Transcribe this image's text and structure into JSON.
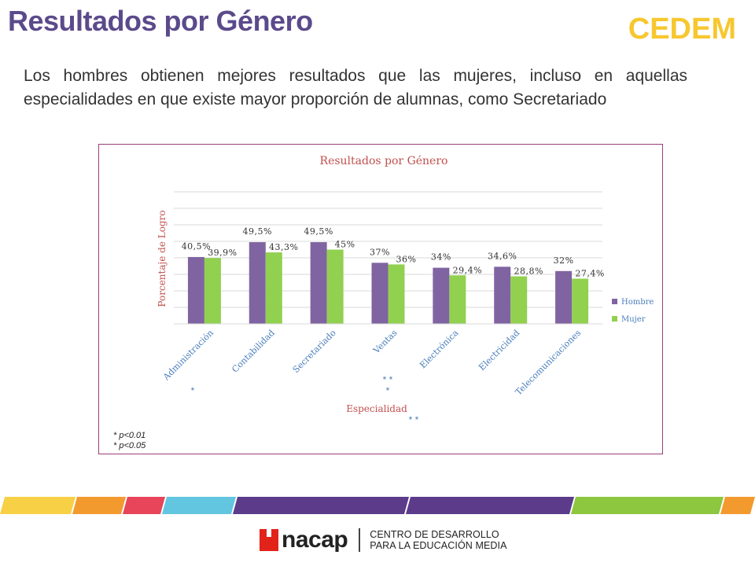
{
  "header": {
    "title": "Resultados por Género",
    "brand": "CEDEM"
  },
  "lead_text": "Los hombres obtienen mejores resultados que las mujeres, incluso en aquellas especialidades en que existe mayor proporción de alumnas, como Secretariado",
  "chart_data": {
    "type": "bar",
    "title": "Resultados por Género",
    "xlabel": "Especialidad",
    "ylabel": "Porcentaje de Logro",
    "ylim": [
      0,
      80
    ],
    "grid": true,
    "legend": "right",
    "categories": [
      "Administración",
      "Contabilidad",
      "Secretariado",
      "Ventas",
      "Electrónica",
      "Electricidad",
      "Telecomunicaciones"
    ],
    "series": [
      {
        "name": "Hombre",
        "color": "#8064a2",
        "values": [
          40.5,
          49.5,
          49.5,
          37,
          34,
          34.6,
          32
        ],
        "labels": [
          "40,5%",
          "49,5%",
          "49,5%",
          "37%",
          "34%",
          "34,6%",
          "32%"
        ]
      },
      {
        "name": "Mujer",
        "color": "#92d050",
        "values": [
          39.9,
          43.3,
          45,
          36,
          29.4,
          28.8,
          27.4
        ],
        "labels": [
          "39,9%",
          "43,3%",
          "45%",
          "36%",
          "29,4%",
          "28,8%",
          "27,4%"
        ]
      }
    ],
    "significance_marks": [
      "*",
      "* *",
      "*",
      "* *"
    ],
    "notes": [
      "* p<0.01",
      "* p<0.05"
    ]
  },
  "footer": {
    "logo_word": "nacap",
    "org_line1": "CENTRO DE DESARROLLO",
    "org_line2": "PARA LA EDUCACIÓN MEDIA"
  },
  "colors": {
    "title": "#5b4a8b",
    "brand": "#f7c72f",
    "chart_border": "#9b3f7a",
    "axis_text": "#c0504d",
    "tick_text": "#4a7ebb",
    "stripes": [
      "#f7d046",
      "#f39a2f",
      "#e8455a",
      "#62c6e0",
      "#5b3b8a",
      "#5b3b8a",
      "#8dc63f",
      "#f39a2f"
    ]
  }
}
